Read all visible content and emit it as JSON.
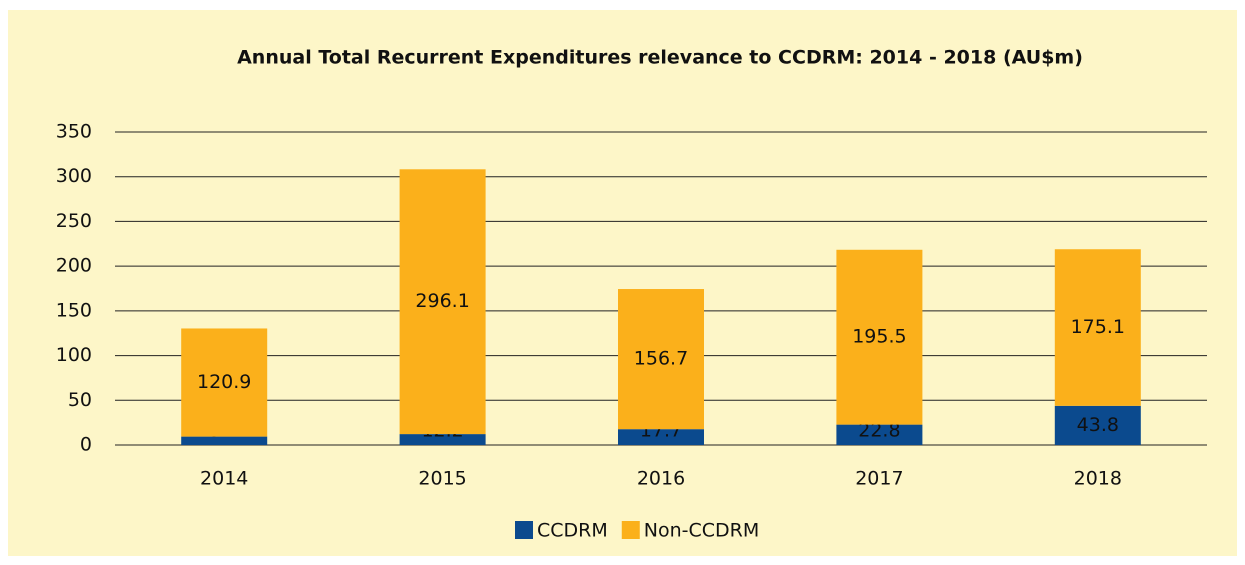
{
  "chart_data": {
    "type": "stacked_bar",
    "title": "Annual Total Recurrent Expenditures relevance to CCDRM: 2014 - 2018 (AU$m)",
    "categories": [
      "2014",
      "2015",
      "2016",
      "2017",
      "2018"
    ],
    "series": [
      {
        "name": "CCDRM",
        "color": "#0b4a8e",
        "values": [
          9.4,
          12.2,
          17.7,
          22.8,
          43.8
        ]
      },
      {
        "name": "Non-CCDRM",
        "color": "#fbb01b",
        "values": [
          120.9,
          296.1,
          156.7,
          195.5,
          175.1
        ]
      }
    ],
    "ylim": [
      0,
      350
    ],
    "yticks": [
      0,
      50,
      100,
      150,
      200,
      250,
      300,
      350
    ],
    "grid": true,
    "legend": "bottom"
  }
}
